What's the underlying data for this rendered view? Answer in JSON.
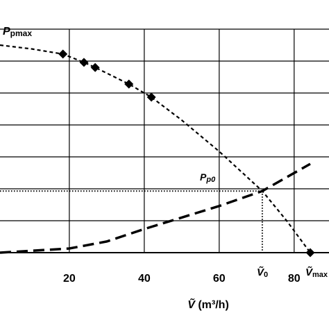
{
  "chart_data": {
    "type": "line",
    "xlabel": {
      "main": "Ṽ",
      "rest": " (m³/h)"
    },
    "xlim": [
      1.5,
      89.3
    ],
    "ylim": [
      0,
      7
    ],
    "xticks": [
      20,
      40,
      60,
      80
    ],
    "yticks": [
      0,
      1,
      2,
      3,
      4,
      5,
      6,
      7
    ],
    "grid": true,
    "series": [
      {
        "name": null,
        "color": "#000000",
        "style": "short-dash",
        "x": [
          1.5,
          10,
          18.3,
          23.9,
          26.9,
          35.9,
          41.9,
          50,
          60,
          71.5,
          78,
          84.3
        ],
        "values": [
          6.5,
          6.38,
          6.22,
          5.96,
          5.8,
          5.28,
          4.87,
          4.15,
          3.17,
          1.93,
          1.0,
          0
        ]
      },
      {
        "name": null,
        "color": "#000000",
        "style": "long-dash",
        "x": [
          1.5,
          20,
          30,
          40,
          50,
          60,
          71.5,
          84.3
        ],
        "values": [
          0,
          0.13,
          0.35,
          0.74,
          1.1,
          1.46,
          1.93,
          2.78
        ]
      },
      {
        "name": null,
        "color": "#000000",
        "style": "marker",
        "x": [
          18.3,
          23.9,
          26.9,
          35.9,
          41.9,
          84.3
        ],
        "values": [
          6.22,
          5.96,
          5.8,
          5.28,
          4.87,
          0
        ]
      }
    ],
    "operating_point": {
      "x": 71.5,
      "y": 1.93
    },
    "annotations": {
      "ppmax": {
        "main": "P",
        "sub": "pmax"
      },
      "pp0": {
        "main": "P",
        "sub": "p0"
      },
      "v0": {
        "main": "Ṽ",
        "sub": "0"
      },
      "vmax": {
        "main": "Ṽ",
        "sub": "max"
      }
    }
  }
}
